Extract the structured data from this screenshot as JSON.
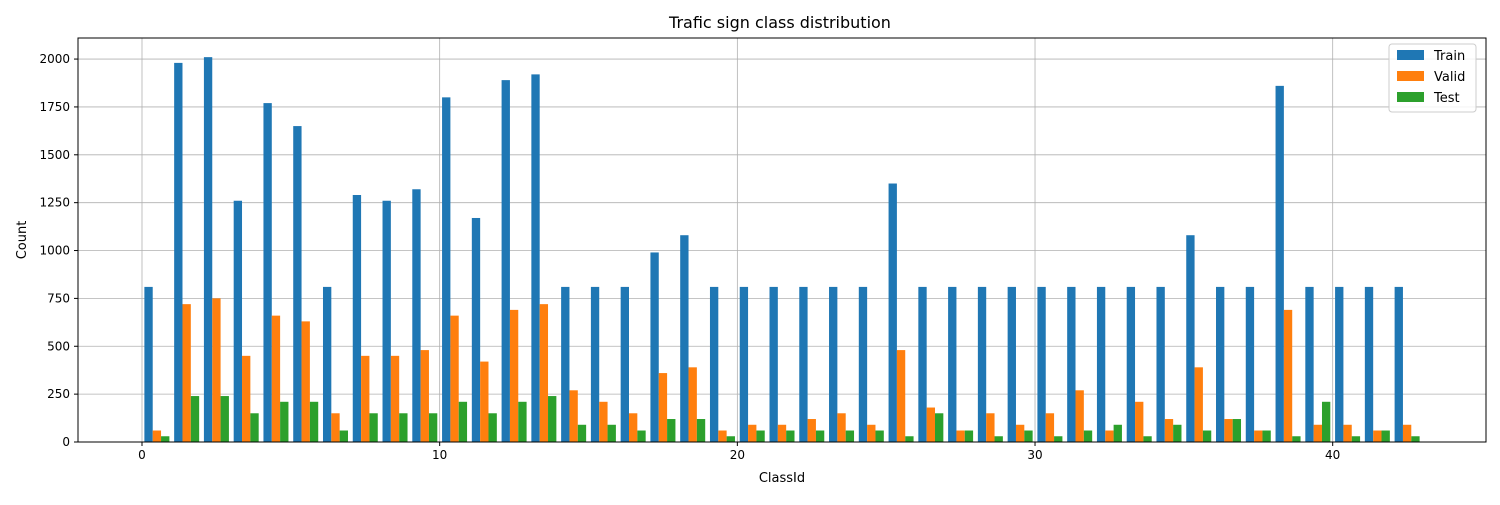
{
  "chart_data": {
    "type": "bar",
    "title": "Trafic sign class distribution",
    "xlabel": "ClassId",
    "ylabel": "Count",
    "xlim": [
      -2.15,
      45.15
    ],
    "ylim": [
      0,
      2110
    ],
    "x_ticks": [
      0,
      10,
      20,
      30,
      40
    ],
    "y_ticks": [
      0,
      250,
      500,
      750,
      1000,
      1250,
      1500,
      1750,
      2000
    ],
    "grid": true,
    "legend_position": "top-right",
    "bar_width": 0.28,
    "categories": [
      0,
      1,
      2,
      3,
      4,
      5,
      6,
      7,
      8,
      9,
      10,
      11,
      12,
      13,
      14,
      15,
      16,
      17,
      18,
      19,
      20,
      21,
      22,
      23,
      24,
      25,
      26,
      27,
      28,
      29,
      30,
      31,
      32,
      33,
      34,
      35,
      36,
      37,
      38,
      39,
      40,
      41,
      42
    ],
    "series": [
      {
        "name": "Train",
        "color": "#1f77b4",
        "values": [
          810,
          1980,
          2010,
          1260,
          1770,
          1650,
          810,
          1290,
          1260,
          1320,
          1800,
          1170,
          1890,
          1920,
          810,
          810,
          810,
          990,
          1080,
          810,
          810,
          810,
          810,
          810,
          810,
          1350,
          810,
          810,
          810,
          810,
          810,
          810,
          810,
          810,
          810,
          1080,
          810,
          810,
          1860,
          810,
          810,
          810,
          810
        ]
      },
      {
        "name": "Valid",
        "color": "#ff7f0e",
        "values": [
          60,
          720,
          750,
          450,
          660,
          630,
          150,
          450,
          450,
          480,
          660,
          420,
          690,
          720,
          270,
          210,
          150,
          360,
          390,
          60,
          90,
          90,
          120,
          150,
          90,
          480,
          180,
          60,
          150,
          90,
          150,
          270,
          60,
          210,
          120,
          390,
          120,
          60,
          690,
          90,
          90,
          60,
          90
        ]
      },
      {
        "name": "Test",
        "color": "#2ca02c",
        "values": [
          30,
          240,
          240,
          150,
          210,
          210,
          60,
          150,
          150,
          150,
          210,
          150,
          210,
          240,
          90,
          90,
          60,
          120,
          120,
          30,
          60,
          60,
          60,
          60,
          60,
          30,
          150,
          60,
          30,
          60,
          30,
          60,
          90,
          30,
          90,
          60,
          120,
          60,
          30,
          210,
          30,
          60,
          30
        ]
      }
    ]
  }
}
